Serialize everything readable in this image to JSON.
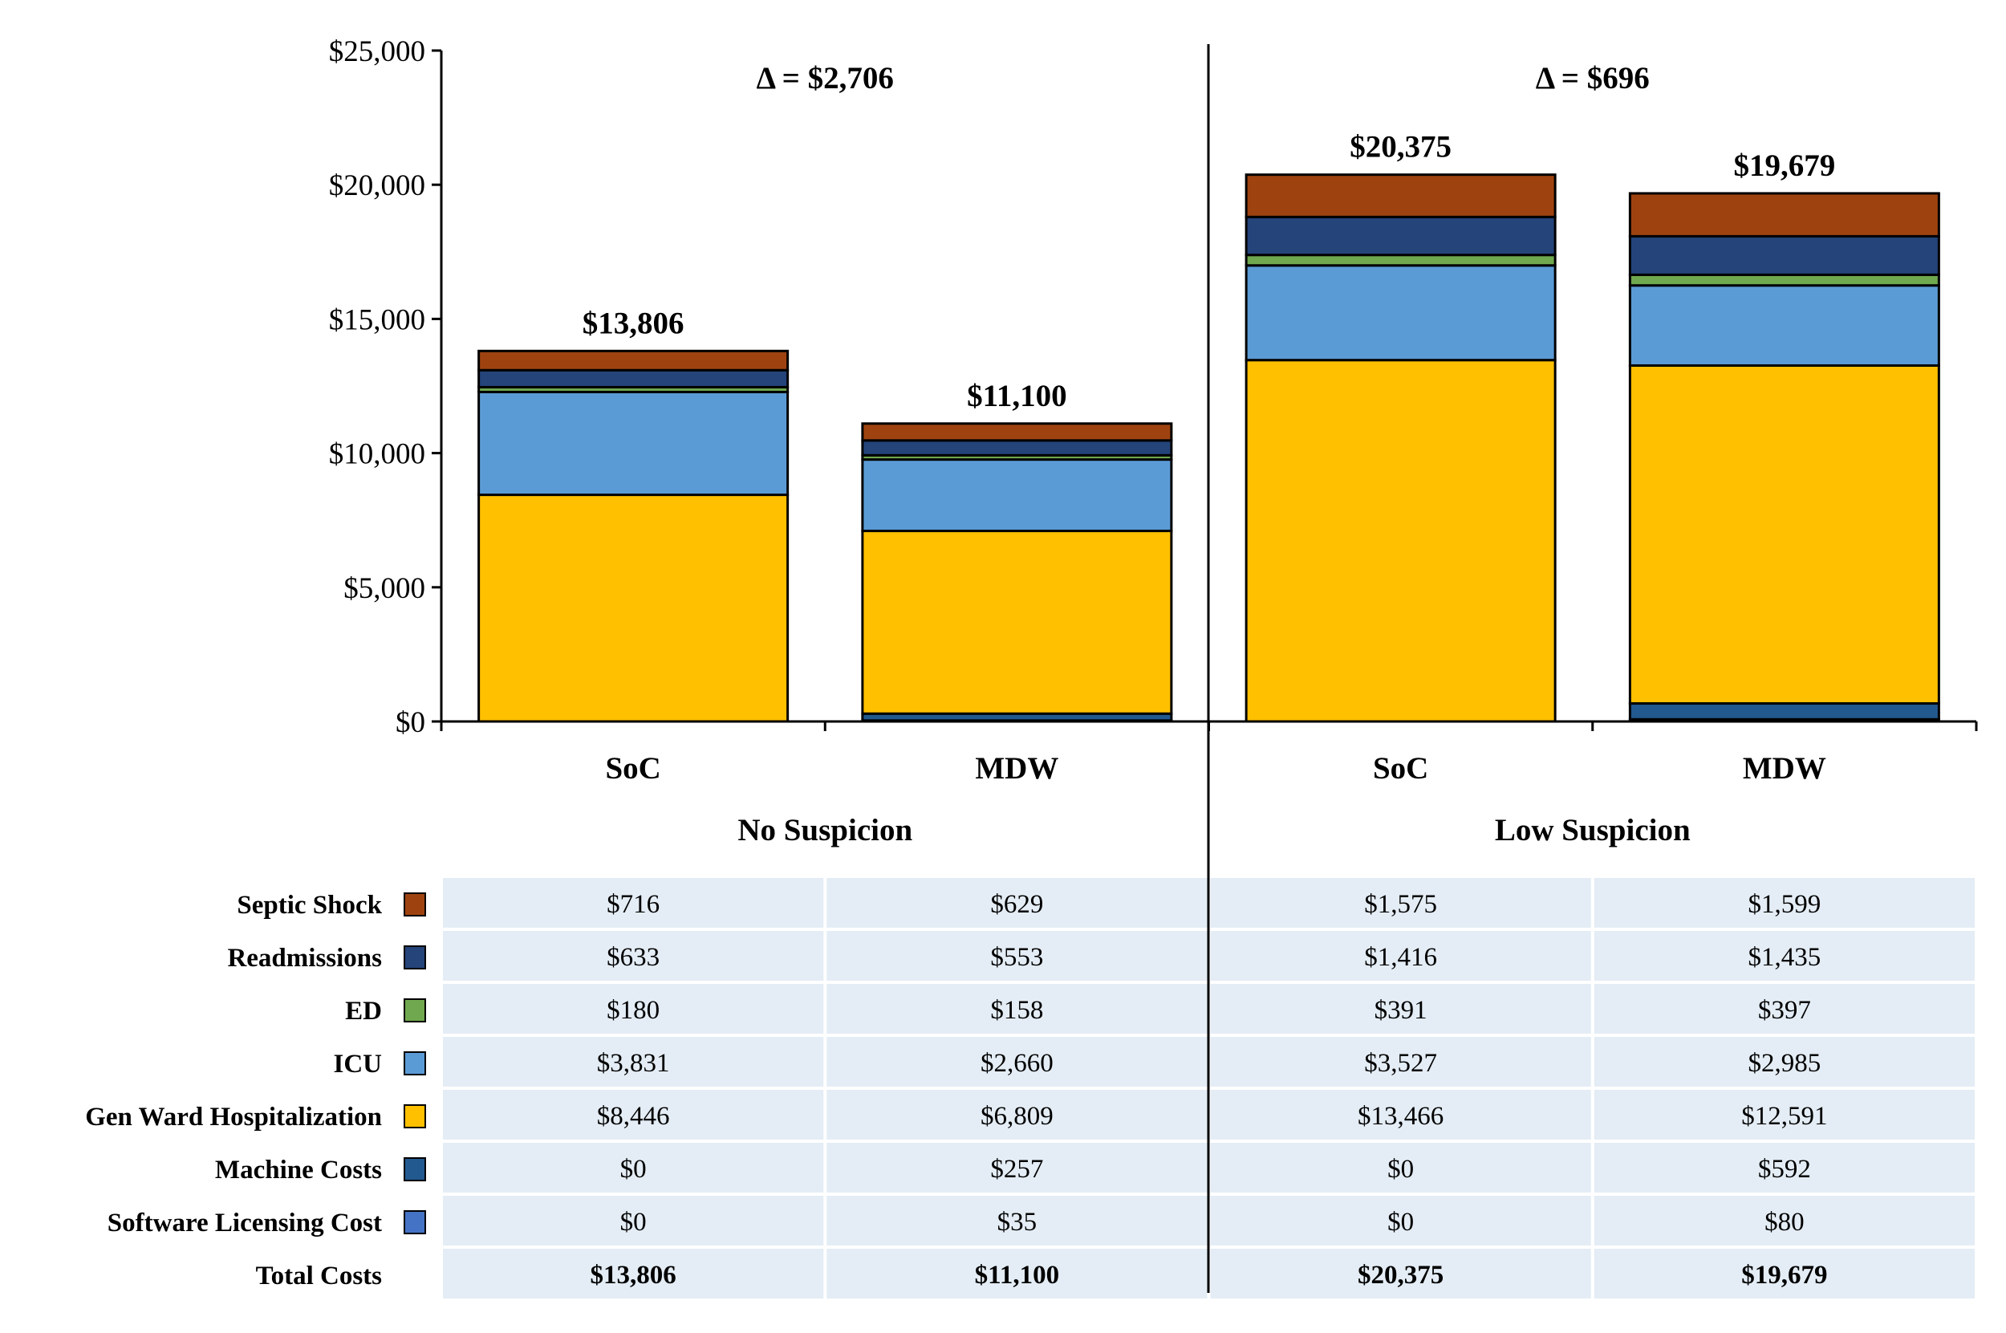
{
  "chart_data": {
    "type": "bar",
    "stacked": true,
    "groups": [
      {
        "label": "No Suspicion",
        "delta_label": "Δ = $2,706"
      },
      {
        "label": "Low Suspicion",
        "delta_label": "Δ = $696"
      }
    ],
    "bars": [
      {
        "category": "SoC",
        "group": 0,
        "total_label": "$13,806"
      },
      {
        "category": "MDW",
        "group": 0,
        "total_label": "$11,100"
      },
      {
        "category": "SoC",
        "group": 1,
        "total_label": "$20,375"
      },
      {
        "category": "MDW",
        "group": 1,
        "total_label": "$19,679"
      }
    ],
    "series": [
      {
        "name": "Septic Shock",
        "color": "#9E4310",
        "values": [
          716,
          629,
          1575,
          1599
        ],
        "labels": [
          "$716",
          "$629",
          "$1,575",
          "$1,599"
        ]
      },
      {
        "name": "Readmissions",
        "color": "#24447A",
        "values": [
          633,
          553,
          1416,
          1435
        ],
        "labels": [
          "$633",
          "$553",
          "$1,416",
          "$1,435"
        ]
      },
      {
        "name": "ED",
        "color": "#6FA84E",
        "values": [
          180,
          158,
          391,
          397
        ],
        "labels": [
          "$180",
          "$158",
          "$391",
          "$397"
        ]
      },
      {
        "name": "ICU",
        "color": "#5B9BD5",
        "values": [
          3831,
          2660,
          3527,
          2985
        ],
        "labels": [
          "$3,831",
          "$2,660",
          "$3,527",
          "$2,985"
        ]
      },
      {
        "name": "Gen Ward Hospitalization",
        "color": "#FFC000",
        "values": [
          8446,
          6809,
          13466,
          12591
        ],
        "labels": [
          "$8,446",
          "$6,809",
          "$13,466",
          "$12,591"
        ]
      },
      {
        "name": "Machine Costs",
        "color": "#22598F",
        "values": [
          0,
          257,
          0,
          592
        ],
        "labels": [
          "$0",
          "$257",
          "$0",
          "$592"
        ]
      },
      {
        "name": "Software Licensing Cost",
        "color": "#4472C4",
        "values": [
          0,
          35,
          0,
          80
        ],
        "labels": [
          "$0",
          "$35",
          "$0",
          "$80"
        ]
      }
    ],
    "totals": {
      "name": "Total Costs",
      "values": [
        13806,
        11100,
        20375,
        19679
      ],
      "labels": [
        "$13,806",
        "$11,100",
        "$20,375",
        "$19,679"
      ]
    },
    "ylim": [
      0,
      25000
    ],
    "yticks": [
      0,
      5000,
      10000,
      15000,
      20000,
      25000
    ],
    "ytick_labels": [
      "$0",
      "$5,000",
      "$10,000",
      "$15,000",
      "$20,000",
      "$25,000"
    ],
    "table_background": "#E4EDF5"
  }
}
